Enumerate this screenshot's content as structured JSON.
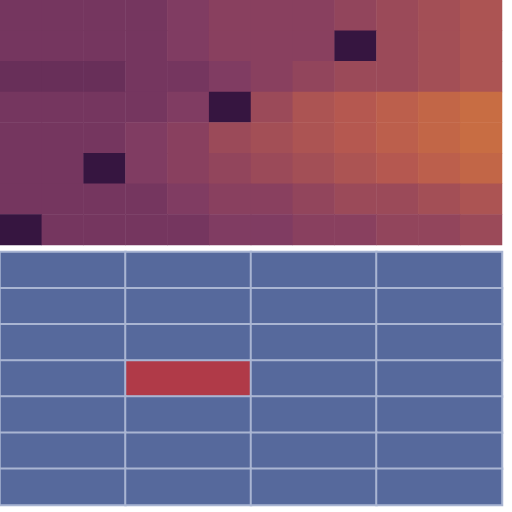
{
  "chart_data": [
    {
      "type": "heatmap",
      "tick_labels": false,
      "value_range": [
        0,
        10
      ],
      "values": [
        [
          3,
          3,
          3,
          3,
          3.5,
          4,
          4,
          4,
          4.5,
          5,
          5.5,
          6
        ],
        [
          3,
          3,
          3,
          3,
          3.5,
          4,
          4,
          4,
          0.5,
          5,
          5.5,
          6
        ],
        [
          2.5,
          2.5,
          2.5,
          3,
          3,
          3.5,
          4,
          4.5,
          5,
          5,
          5.5,
          6
        ],
        [
          3,
          3,
          3,
          3,
          3.5,
          0.5,
          5,
          6,
          6.5,
          7,
          7.5,
          8
        ],
        [
          3,
          3,
          3,
          3.5,
          4,
          5,
          5.5,
          6,
          6.5,
          7,
          7.5,
          8
        ],
        [
          3,
          3,
          0.5,
          3.5,
          4,
          4.5,
          5,
          5.5,
          6,
          6.5,
          7,
          7.5
        ],
        [
          3,
          3,
          3,
          3,
          3.5,
          4,
          4,
          4.5,
          5,
          5,
          5.5,
          6
        ],
        [
          0.5,
          3,
          3,
          3,
          3,
          3.5,
          3.5,
          4,
          4,
          4.5,
          4.5,
          5
        ]
      ]
    },
    {
      "type": "heatmap",
      "tick_labels": false,
      "value_range": [
        0,
        1
      ],
      "values": [
        [
          0,
          0,
          0,
          0
        ],
        [
          0,
          0,
          0,
          0
        ],
        [
          0,
          0,
          0,
          0
        ],
        [
          0,
          1,
          0,
          0
        ],
        [
          0,
          0,
          0,
          0
        ],
        [
          0,
          0,
          0,
          0
        ],
        [
          0,
          0,
          0,
          0
        ]
      ]
    }
  ]
}
